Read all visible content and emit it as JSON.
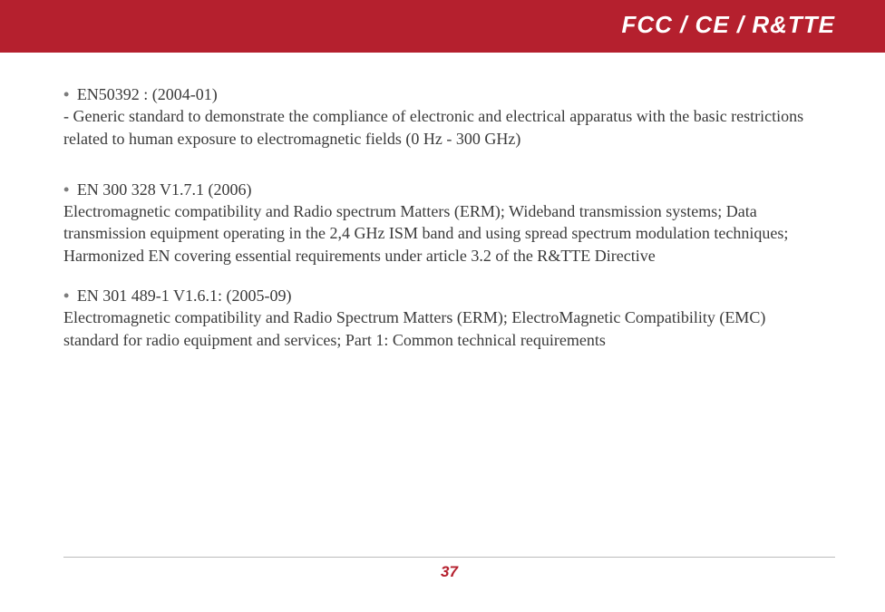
{
  "header": {
    "title": "FCC / CE / R&TTE",
    "bg_color": "#b5202e",
    "text_color": "#ffffff"
  },
  "sections": [
    {
      "bullet_title": "  EN50392 : (2004-01)",
      "body": "-  Generic standard to demonstrate the compliance of electronic and electrical apparatus with the basic restrictions related to human exposure to electromagnetic fields (0 Hz - 300 GHz)"
    },
    {
      "bullet_title": " EN 300 328 V1.7.1 (2006)",
      "body": "  Electromagnetic compatibility and Radio spectrum Matters (ERM); Wideband transmission systems; Data transmission equipment operating in the 2,4 GHz ISM band and using spread spectrum modulation techniques; Harmonized EN covering essential requirements under article 3.2 of the R&TTE Directive"
    },
    {
      "bullet_title": " EN  301  489-1  V1.6.1:  (2005-09)",
      "body": "Electromagnetic  compatibility  and  Radio  Spectrum  Matters  (ERM);  ElectroMagnetic  Compatibility  (EMC)  standard  for  radio  equipment  and  services;  Part  1:  Common  technical  requirements"
    }
  ],
  "footer": {
    "page_number": "37"
  }
}
